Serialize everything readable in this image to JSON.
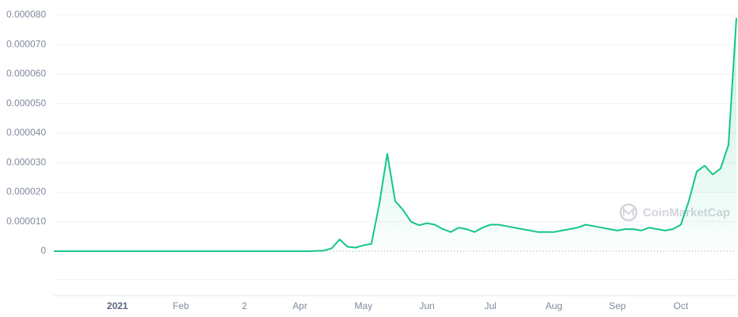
{
  "chart_data": {
    "type": "line",
    "watermark": "CoinMarketCap",
    "categories": [
      null,
      null,
      null,
      null,
      null,
      null,
      null,
      null,
      "2021",
      null,
      null,
      null,
      null,
      null,
      null,
      null,
      "Feb",
      null,
      null,
      null,
      null,
      null,
      null,
      null,
      "2",
      null,
      null,
      null,
      null,
      null,
      null,
      "Apr",
      null,
      null,
      null,
      null,
      null,
      null,
      null,
      "May",
      null,
      null,
      null,
      null,
      null,
      null,
      null,
      "Jun",
      null,
      null,
      null,
      null,
      null,
      null,
      null,
      "Jul",
      null,
      null,
      null,
      null,
      null,
      null,
      null,
      "Aug",
      null,
      null,
      null,
      null,
      null,
      null,
      null,
      "Sep",
      null,
      null,
      null,
      null,
      null,
      null,
      null,
      "Oct",
      null,
      null,
      null,
      null,
      null,
      null,
      null
    ],
    "values": [
      0,
      0,
      0,
      0,
      0,
      0,
      0,
      0,
      0,
      0,
      0,
      0,
      0,
      0,
      0,
      0,
      0,
      0,
      0,
      0,
      0,
      0,
      0,
      0,
      0,
      0,
      0,
      0,
      0,
      0,
      0,
      0,
      0,
      1e-07,
      2e-07,
      1e-06,
      4e-06,
      1.5e-06,
      1.2e-06,
      2e-06,
      2.5e-06,
      1.6e-05,
      3.3e-05,
      1.7e-05,
      1.4e-05,
      1e-05,
      8.8e-06,
      9.5e-06,
      9e-06,
      7.5e-06,
      6.5e-06,
      8e-06,
      7.5e-06,
      6.5e-06,
      8e-06,
      9e-06,
      9e-06,
      8.5e-06,
      8e-06,
      7.5e-06,
      7e-06,
      6.5e-06,
      6.5e-06,
      6.5e-06,
      7e-06,
      7.5e-06,
      8e-06,
      9e-06,
      8.5e-06,
      8e-06,
      7.5e-06,
      7e-06,
      7.5e-06,
      7.5e-06,
      7e-06,
      8e-06,
      7.5e-06,
      7e-06,
      7.5e-06,
      9e-06,
      1.7e-05,
      2.7e-05,
      2.9e-05,
      2.6e-05,
      2.8e-05,
      3.6e-05,
      7.9e-05
    ],
    "color": "#16c784",
    "ylim": [
      0,
      8e-05
    ],
    "yticks": [
      0,
      {
        "value": 1e-05,
        "label": "0.000010"
      },
      {
        "value": 2e-05,
        "label": "0.000020"
      },
      {
        "value": 3e-05,
        "label": "0.000030"
      },
      {
        "value": 4e-05,
        "label": "0.000040"
      },
      {
        "value": 5e-05,
        "label": "0.000050"
      },
      {
        "value": 6e-05,
        "label": "0.000060"
      },
      {
        "value": 7e-05,
        "label": "0.000070"
      },
      {
        "value": 8e-05,
        "label": "0.000080"
      }
    ],
    "grid": true
  }
}
